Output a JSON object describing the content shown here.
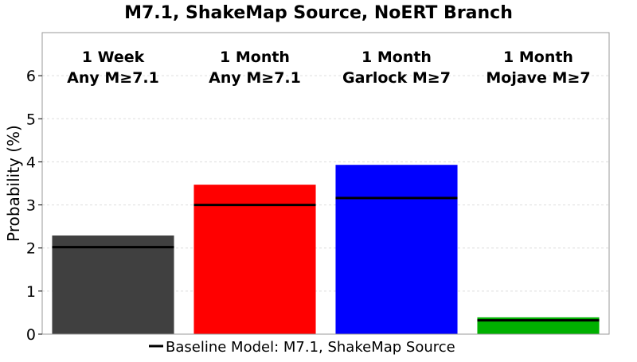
{
  "chart_data": {
    "type": "bar",
    "title": "M7.1, ShakeMap Source, NoERT Branch",
    "ylabel": "Probability (%)",
    "xlabel": "",
    "ylim": [
      0,
      7
    ],
    "yticks": [
      0,
      1,
      2,
      3,
      4,
      5,
      6
    ],
    "grid": true,
    "legend_position": "bottom",
    "categories": [
      [
        "1 Week",
        "Any M≥7.1"
      ],
      [
        "1 Month",
        "Any M≥7.1"
      ],
      [
        "1 Month",
        "Garlock M≥7"
      ],
      [
        "1 Month",
        "Mojave M≥7"
      ]
    ],
    "values": [
      2.29,
      3.47,
      3.93,
      0.39
    ],
    "baseline": {
      "name": "Baseline Model: M7.1, ShakeMap Source",
      "values": [
        2.02,
        3.0,
        3.16,
        0.32
      ],
      "color": "#000000"
    },
    "colors": [
      "#404040",
      "#ff0000",
      "#0000ff",
      "#00b000"
    ]
  }
}
